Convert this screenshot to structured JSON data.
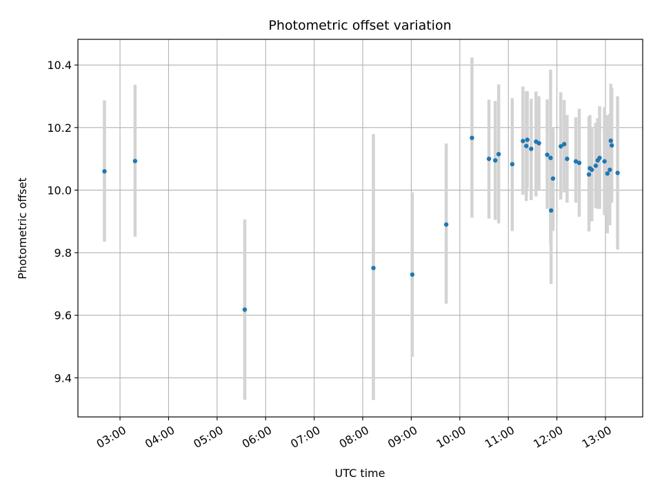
{
  "chart_data": {
    "type": "scatter",
    "title": "Photometric offset variation",
    "xlabel": "UTC time",
    "ylabel": "Photometric offset",
    "x_unit": "hour of day (UTC)",
    "xlim": [
      2.133,
      13.767
    ],
    "ylim": [
      9.275,
      10.482
    ],
    "x_ticks": [
      {
        "value": 3,
        "label": "03:00"
      },
      {
        "value": 4,
        "label": "04:00"
      },
      {
        "value": 5,
        "label": "05:00"
      },
      {
        "value": 6,
        "label": "06:00"
      },
      {
        "value": 7,
        "label": "07:00"
      },
      {
        "value": 8,
        "label": "08:00"
      },
      {
        "value": 9,
        "label": "09:00"
      },
      {
        "value": 10,
        "label": "10:00"
      },
      {
        "value": 11,
        "label": "11:00"
      },
      {
        "value": 12,
        "label": "12:00"
      },
      {
        "value": 13,
        "label": "13:00"
      }
    ],
    "y_ticks": [
      {
        "value": 9.4,
        "label": "9.4"
      },
      {
        "value": 9.6,
        "label": "9.6"
      },
      {
        "value": 9.8,
        "label": "9.8"
      },
      {
        "value": 10.0,
        "label": "10.0"
      },
      {
        "value": 10.2,
        "label": "10.2"
      },
      {
        "value": 10.4,
        "label": "10.4"
      }
    ],
    "grid": true,
    "colors": {
      "point": "#1f77b4",
      "errorbar": "#d3d3d3",
      "grid": "#b0b0b0"
    },
    "series": [
      {
        "points": [
          {
            "x": 2.68,
            "y": 10.06,
            "lo": 9.835,
            "hi": 10.287
          },
          {
            "x": 3.31,
            "y": 10.093,
            "lo": 9.851,
            "hi": 10.337
          },
          {
            "x": 5.57,
            "y": 9.618,
            "lo": 9.33,
            "hi": 9.906
          },
          {
            "x": 8.22,
            "y": 9.751,
            "lo": 9.329,
            "hi": 10.179
          },
          {
            "x": 9.02,
            "y": 9.73,
            "lo": 9.467,
            "hi": 9.993
          },
          {
            "x": 9.72,
            "y": 9.89,
            "lo": 9.637,
            "hi": 10.149
          },
          {
            "x": 10.25,
            "y": 10.167,
            "lo": 9.912,
            "hi": 10.424
          },
          {
            "x": 10.6,
            "y": 10.1,
            "lo": 9.909,
            "hi": 10.289
          },
          {
            "x": 10.73,
            "y": 10.095,
            "lo": 9.905,
            "hi": 10.285
          },
          {
            "x": 10.8,
            "y": 10.115,
            "lo": 9.894,
            "hi": 10.338
          },
          {
            "x": 11.08,
            "y": 10.083,
            "lo": 9.869,
            "hi": 10.294
          },
          {
            "x": 11.3,
            "y": 10.157,
            "lo": 9.985,
            "hi": 10.331
          },
          {
            "x": 11.37,
            "y": 10.141,
            "lo": 9.965,
            "hi": 10.316
          },
          {
            "x": 11.39,
            "y": 10.161,
            "lo": 10.005,
            "hi": 10.316
          },
          {
            "x": 11.47,
            "y": 10.132,
            "lo": 9.968,
            "hi": 10.292
          },
          {
            "x": 11.57,
            "y": 10.155,
            "lo": 9.98,
            "hi": 10.315
          },
          {
            "x": 11.63,
            "y": 10.15,
            "lo": 10.0,
            "hi": 10.3
          },
          {
            "x": 11.8,
            "y": 10.113,
            "lo": 9.94,
            "hi": 10.29
          },
          {
            "x": 11.87,
            "y": 10.103,
            "lo": 9.825,
            "hi": 10.385
          },
          {
            "x": 11.88,
            "y": 9.935,
            "lo": 9.7,
            "hi": 10.17
          },
          {
            "x": 11.92,
            "y": 10.037,
            "lo": 9.87,
            "hi": 10.2
          },
          {
            "x": 12.08,
            "y": 10.14,
            "lo": 9.97,
            "hi": 10.313
          },
          {
            "x": 12.15,
            "y": 10.147,
            "lo": 9.993,
            "hi": 10.288
          },
          {
            "x": 12.21,
            "y": 10.1,
            "lo": 9.96,
            "hi": 10.24
          },
          {
            "x": 12.39,
            "y": 10.092,
            "lo": 9.96,
            "hi": 10.233
          },
          {
            "x": 12.46,
            "y": 10.087,
            "lo": 9.915,
            "hi": 10.26
          },
          {
            "x": 12.66,
            "y": 10.05,
            "lo": 9.868,
            "hi": 10.235
          },
          {
            "x": 12.68,
            "y": 10.07,
            "lo": 9.9,
            "hi": 10.24
          },
          {
            "x": 12.72,
            "y": 10.065,
            "lo": 9.9,
            "hi": 10.2
          },
          {
            "x": 12.8,
            "y": 10.078,
            "lo": 9.943,
            "hi": 10.215
          },
          {
            "x": 12.84,
            "y": 10.095,
            "lo": 9.94,
            "hi": 10.23
          },
          {
            "x": 12.88,
            "y": 10.103,
            "lo": 9.94,
            "hi": 10.268
          },
          {
            "x": 12.98,
            "y": 10.092,
            "lo": 9.92,
            "hi": 10.265
          },
          {
            "x": 13.04,
            "y": 10.053,
            "lo": 9.862,
            "hi": 10.24
          },
          {
            "x": 13.09,
            "y": 10.065,
            "lo": 9.888,
            "hi": 10.243
          },
          {
            "x": 13.11,
            "y": 10.158,
            "lo": 9.975,
            "hi": 10.34
          },
          {
            "x": 13.13,
            "y": 10.143,
            "lo": 9.96,
            "hi": 10.327
          },
          {
            "x": 13.25,
            "y": 10.055,
            "lo": 9.81,
            "hi": 10.3
          }
        ]
      }
    ]
  }
}
